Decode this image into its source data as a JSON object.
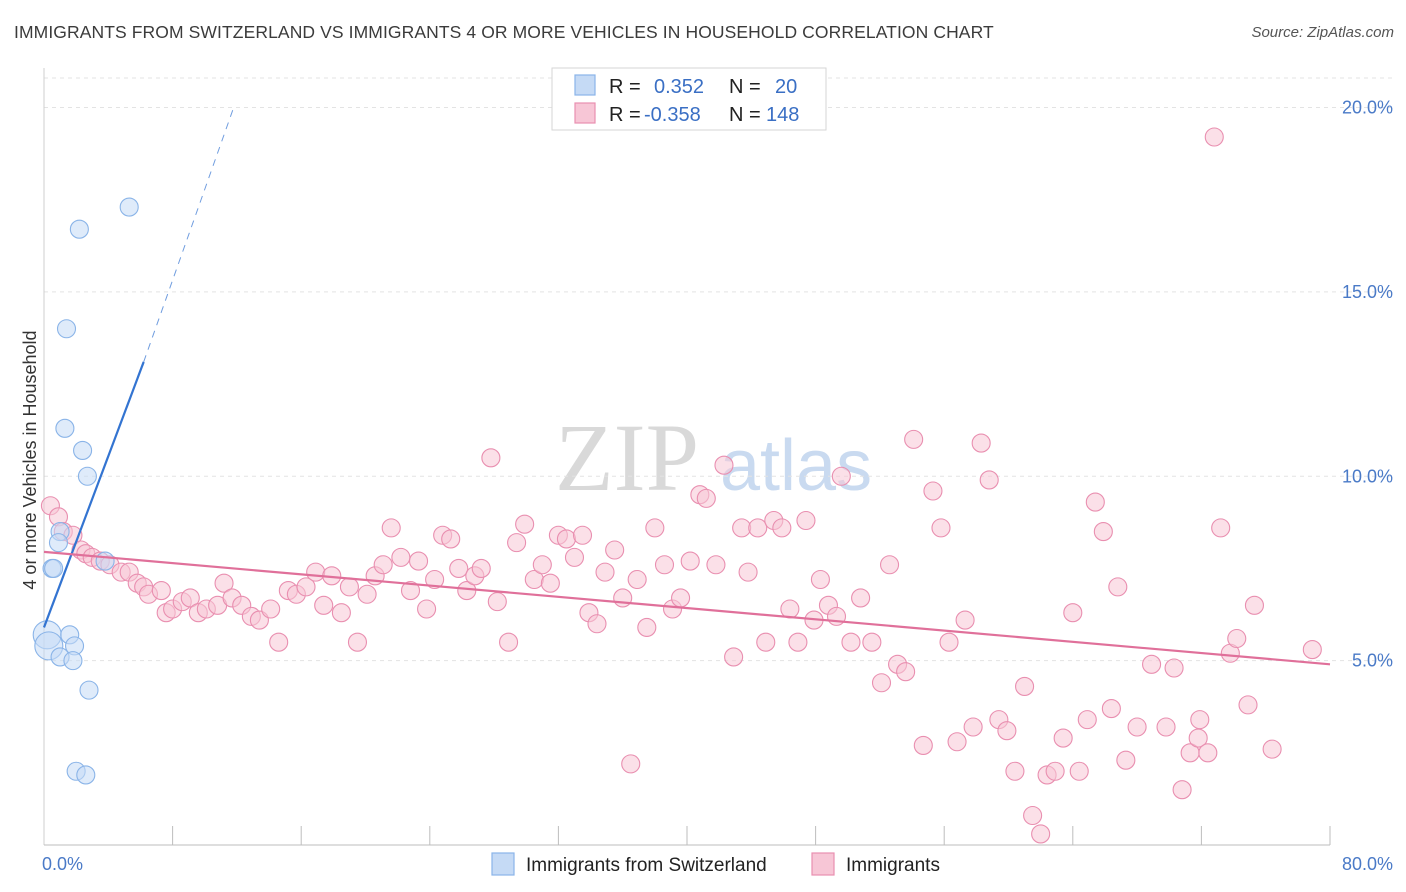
{
  "title": "IMMIGRANTS FROM SWITZERLAND VS IMMIGRANTS 4 OR MORE VEHICLES IN HOUSEHOLD CORRELATION CHART",
  "source": "Source: ZipAtlas.com",
  "watermark": {
    "zip": "ZIP",
    "atlas": "atlas"
  },
  "chart_data": {
    "type": "scatter",
    "ylabel": "4 or more Vehicles in Household",
    "xlim": [
      0,
      80
    ],
    "ylim": [
      0,
      20.8
    ],
    "x_tick_labels": [
      {
        "value": 0,
        "label": "0.0%"
      },
      {
        "value": 80,
        "label": "80.0%"
      }
    ],
    "y_tick_labels": [
      {
        "value": 5,
        "label": "5.0%"
      },
      {
        "value": 10,
        "label": "10.0%"
      },
      {
        "value": 15,
        "label": "15.0%"
      },
      {
        "value": 20,
        "label": "20.0%"
      }
    ],
    "legend": [
      {
        "series": "Immigrants from Switzerland",
        "r_label": "R =",
        "r_value": "0.352",
        "n_label": "N =",
        "n_value": "20",
        "color": "#8ab4e8",
        "fill": "#c5daf5"
      },
      {
        "series": "Immigrants",
        "r_label": "R =",
        "r_value": "-0.358",
        "n_label": "N =",
        "n_value": "148",
        "color": "#e98fb0",
        "fill": "#f7c6d6"
      }
    ],
    "series": [
      {
        "name": "Immigrants from Switzerland",
        "color": "#8ab4e8",
        "trend": {
          "x0": 0,
          "y0": 5.9,
          "x1": 6.2,
          "y1": 13.1,
          "dash_to_x": 11.8,
          "dash_to_y": 20.0,
          "color": "#3374d1"
        },
        "points": [
          [
            5.3,
            17.3
          ],
          [
            2.2,
            16.7
          ],
          [
            1.4,
            14.0
          ],
          [
            1.3,
            11.3
          ],
          [
            2.4,
            10.7
          ],
          [
            2.7,
            10.0
          ],
          [
            1.0,
            8.5
          ],
          [
            0.9,
            8.2
          ],
          [
            3.8,
            7.7
          ],
          [
            0.5,
            7.5
          ],
          [
            0.6,
            7.5
          ],
          [
            0.2,
            5.7
          ],
          [
            1.6,
            5.7
          ],
          [
            0.3,
            5.4
          ],
          [
            1.9,
            5.4
          ],
          [
            1.0,
            5.1
          ],
          [
            1.8,
            5.0
          ],
          [
            2.8,
            4.2
          ],
          [
            2.0,
            2.0
          ],
          [
            2.6,
            1.9
          ]
        ]
      },
      {
        "name": "Immigrants",
        "color": "#e98fb0",
        "trend": {
          "x0": 0,
          "y0": 7.95,
          "x1": 80,
          "y1": 4.9,
          "color": "#e0709a"
        },
        "points": [
          [
            0.4,
            9.2
          ],
          [
            0.9,
            8.9
          ],
          [
            1.2,
            8.5
          ],
          [
            1.8,
            8.4
          ],
          [
            2.3,
            8.0
          ],
          [
            2.6,
            7.9
          ],
          [
            3.0,
            7.8
          ],
          [
            3.5,
            7.7
          ],
          [
            4.1,
            7.6
          ],
          [
            4.8,
            7.4
          ],
          [
            5.3,
            7.4
          ],
          [
            5.8,
            7.1
          ],
          [
            6.2,
            7.0
          ],
          [
            6.5,
            6.8
          ],
          [
            7.3,
            6.9
          ],
          [
            7.6,
            6.3
          ],
          [
            8.0,
            6.4
          ],
          [
            8.6,
            6.6
          ],
          [
            9.1,
            6.7
          ],
          [
            9.6,
            6.3
          ],
          [
            10.1,
            6.4
          ],
          [
            10.8,
            6.5
          ],
          [
            11.2,
            7.1
          ],
          [
            11.7,
            6.7
          ],
          [
            12.3,
            6.5
          ],
          [
            12.9,
            6.2
          ],
          [
            13.4,
            6.1
          ],
          [
            14.1,
            6.4
          ],
          [
            14.6,
            5.5
          ],
          [
            15.2,
            6.9
          ],
          [
            15.7,
            6.8
          ],
          [
            16.3,
            7.0
          ],
          [
            16.9,
            7.4
          ],
          [
            17.4,
            6.5
          ],
          [
            17.9,
            7.3
          ],
          [
            18.5,
            6.3
          ],
          [
            19.0,
            7.0
          ],
          [
            19.5,
            5.5
          ],
          [
            20.1,
            6.8
          ],
          [
            20.6,
            7.3
          ],
          [
            21.1,
            7.6
          ],
          [
            21.6,
            8.6
          ],
          [
            22.2,
            7.8
          ],
          [
            22.8,
            6.9
          ],
          [
            23.3,
            7.7
          ],
          [
            23.8,
            6.4
          ],
          [
            24.3,
            7.2
          ],
          [
            24.8,
            8.4
          ],
          [
            25.3,
            8.3
          ],
          [
            25.8,
            7.5
          ],
          [
            26.3,
            6.9
          ],
          [
            26.8,
            7.3
          ],
          [
            27.2,
            7.5
          ],
          [
            27.8,
            10.5
          ],
          [
            28.2,
            6.6
          ],
          [
            28.9,
            5.5
          ],
          [
            29.4,
            8.2
          ],
          [
            29.9,
            8.7
          ],
          [
            30.5,
            7.2
          ],
          [
            31.0,
            7.6
          ],
          [
            31.5,
            7.1
          ],
          [
            32.0,
            8.4
          ],
          [
            32.5,
            8.3
          ],
          [
            33.0,
            7.8
          ],
          [
            33.5,
            8.4
          ],
          [
            33.9,
            6.3
          ],
          [
            34.4,
            6.0
          ],
          [
            34.9,
            7.4
          ],
          [
            35.5,
            8.0
          ],
          [
            36.0,
            6.7
          ],
          [
            36.5,
            2.2
          ],
          [
            36.9,
            7.2
          ],
          [
            37.5,
            5.9
          ],
          [
            38.0,
            8.6
          ],
          [
            38.6,
            7.6
          ],
          [
            39.1,
            6.4
          ],
          [
            39.6,
            6.7
          ],
          [
            40.2,
            7.7
          ],
          [
            40.8,
            9.5
          ],
          [
            41.2,
            9.4
          ],
          [
            41.8,
            7.6
          ],
          [
            42.3,
            10.3
          ],
          [
            42.9,
            5.1
          ],
          [
            43.4,
            8.6
          ],
          [
            43.8,
            7.4
          ],
          [
            44.4,
            8.6
          ],
          [
            44.9,
            5.5
          ],
          [
            45.4,
            8.8
          ],
          [
            45.9,
            8.6
          ],
          [
            46.4,
            6.4
          ],
          [
            46.9,
            5.5
          ],
          [
            47.4,
            8.8
          ],
          [
            47.9,
            6.1
          ],
          [
            48.3,
            7.2
          ],
          [
            48.8,
            6.5
          ],
          [
            49.3,
            6.2
          ],
          [
            49.6,
            10.0
          ],
          [
            50.2,
            5.5
          ],
          [
            50.8,
            6.7
          ],
          [
            51.5,
            5.5
          ],
          [
            52.1,
            4.4
          ],
          [
            52.6,
            7.6
          ],
          [
            53.1,
            4.9
          ],
          [
            53.6,
            4.7
          ],
          [
            54.1,
            11.0
          ],
          [
            54.7,
            2.7
          ],
          [
            55.3,
            9.6
          ],
          [
            55.8,
            8.6
          ],
          [
            56.3,
            5.5
          ],
          [
            56.8,
            2.8
          ],
          [
            57.3,
            6.1
          ],
          [
            57.8,
            3.2
          ],
          [
            58.3,
            10.9
          ],
          [
            58.8,
            9.9
          ],
          [
            59.4,
            3.4
          ],
          [
            59.9,
            3.1
          ],
          [
            60.4,
            2.0
          ],
          [
            61.0,
            4.3
          ],
          [
            61.5,
            0.8
          ],
          [
            62.0,
            0.3
          ],
          [
            62.4,
            1.9
          ],
          [
            62.9,
            2.0
          ],
          [
            63.4,
            2.9
          ],
          [
            64.0,
            6.3
          ],
          [
            64.4,
            2.0
          ],
          [
            64.9,
            3.4
          ],
          [
            65.4,
            9.3
          ],
          [
            65.9,
            8.5
          ],
          [
            66.4,
            3.7
          ],
          [
            66.8,
            7.0
          ],
          [
            67.3,
            2.3
          ],
          [
            68.0,
            3.2
          ],
          [
            68.9,
            4.9
          ],
          [
            69.8,
            3.2
          ],
          [
            70.3,
            4.8
          ],
          [
            70.8,
            1.5
          ],
          [
            71.3,
            2.5
          ],
          [
            71.9,
            3.4
          ],
          [
            71.8,
            2.9
          ],
          [
            72.4,
            2.5
          ],
          [
            73.2,
            8.6
          ],
          [
            73.8,
            5.2
          ],
          [
            74.2,
            5.6
          ],
          [
            74.9,
            3.8
          ],
          [
            75.3,
            6.5
          ],
          [
            76.4,
            2.6
          ],
          [
            72.8,
            19.2
          ],
          [
            78.9,
            5.3
          ]
        ]
      }
    ]
  }
}
